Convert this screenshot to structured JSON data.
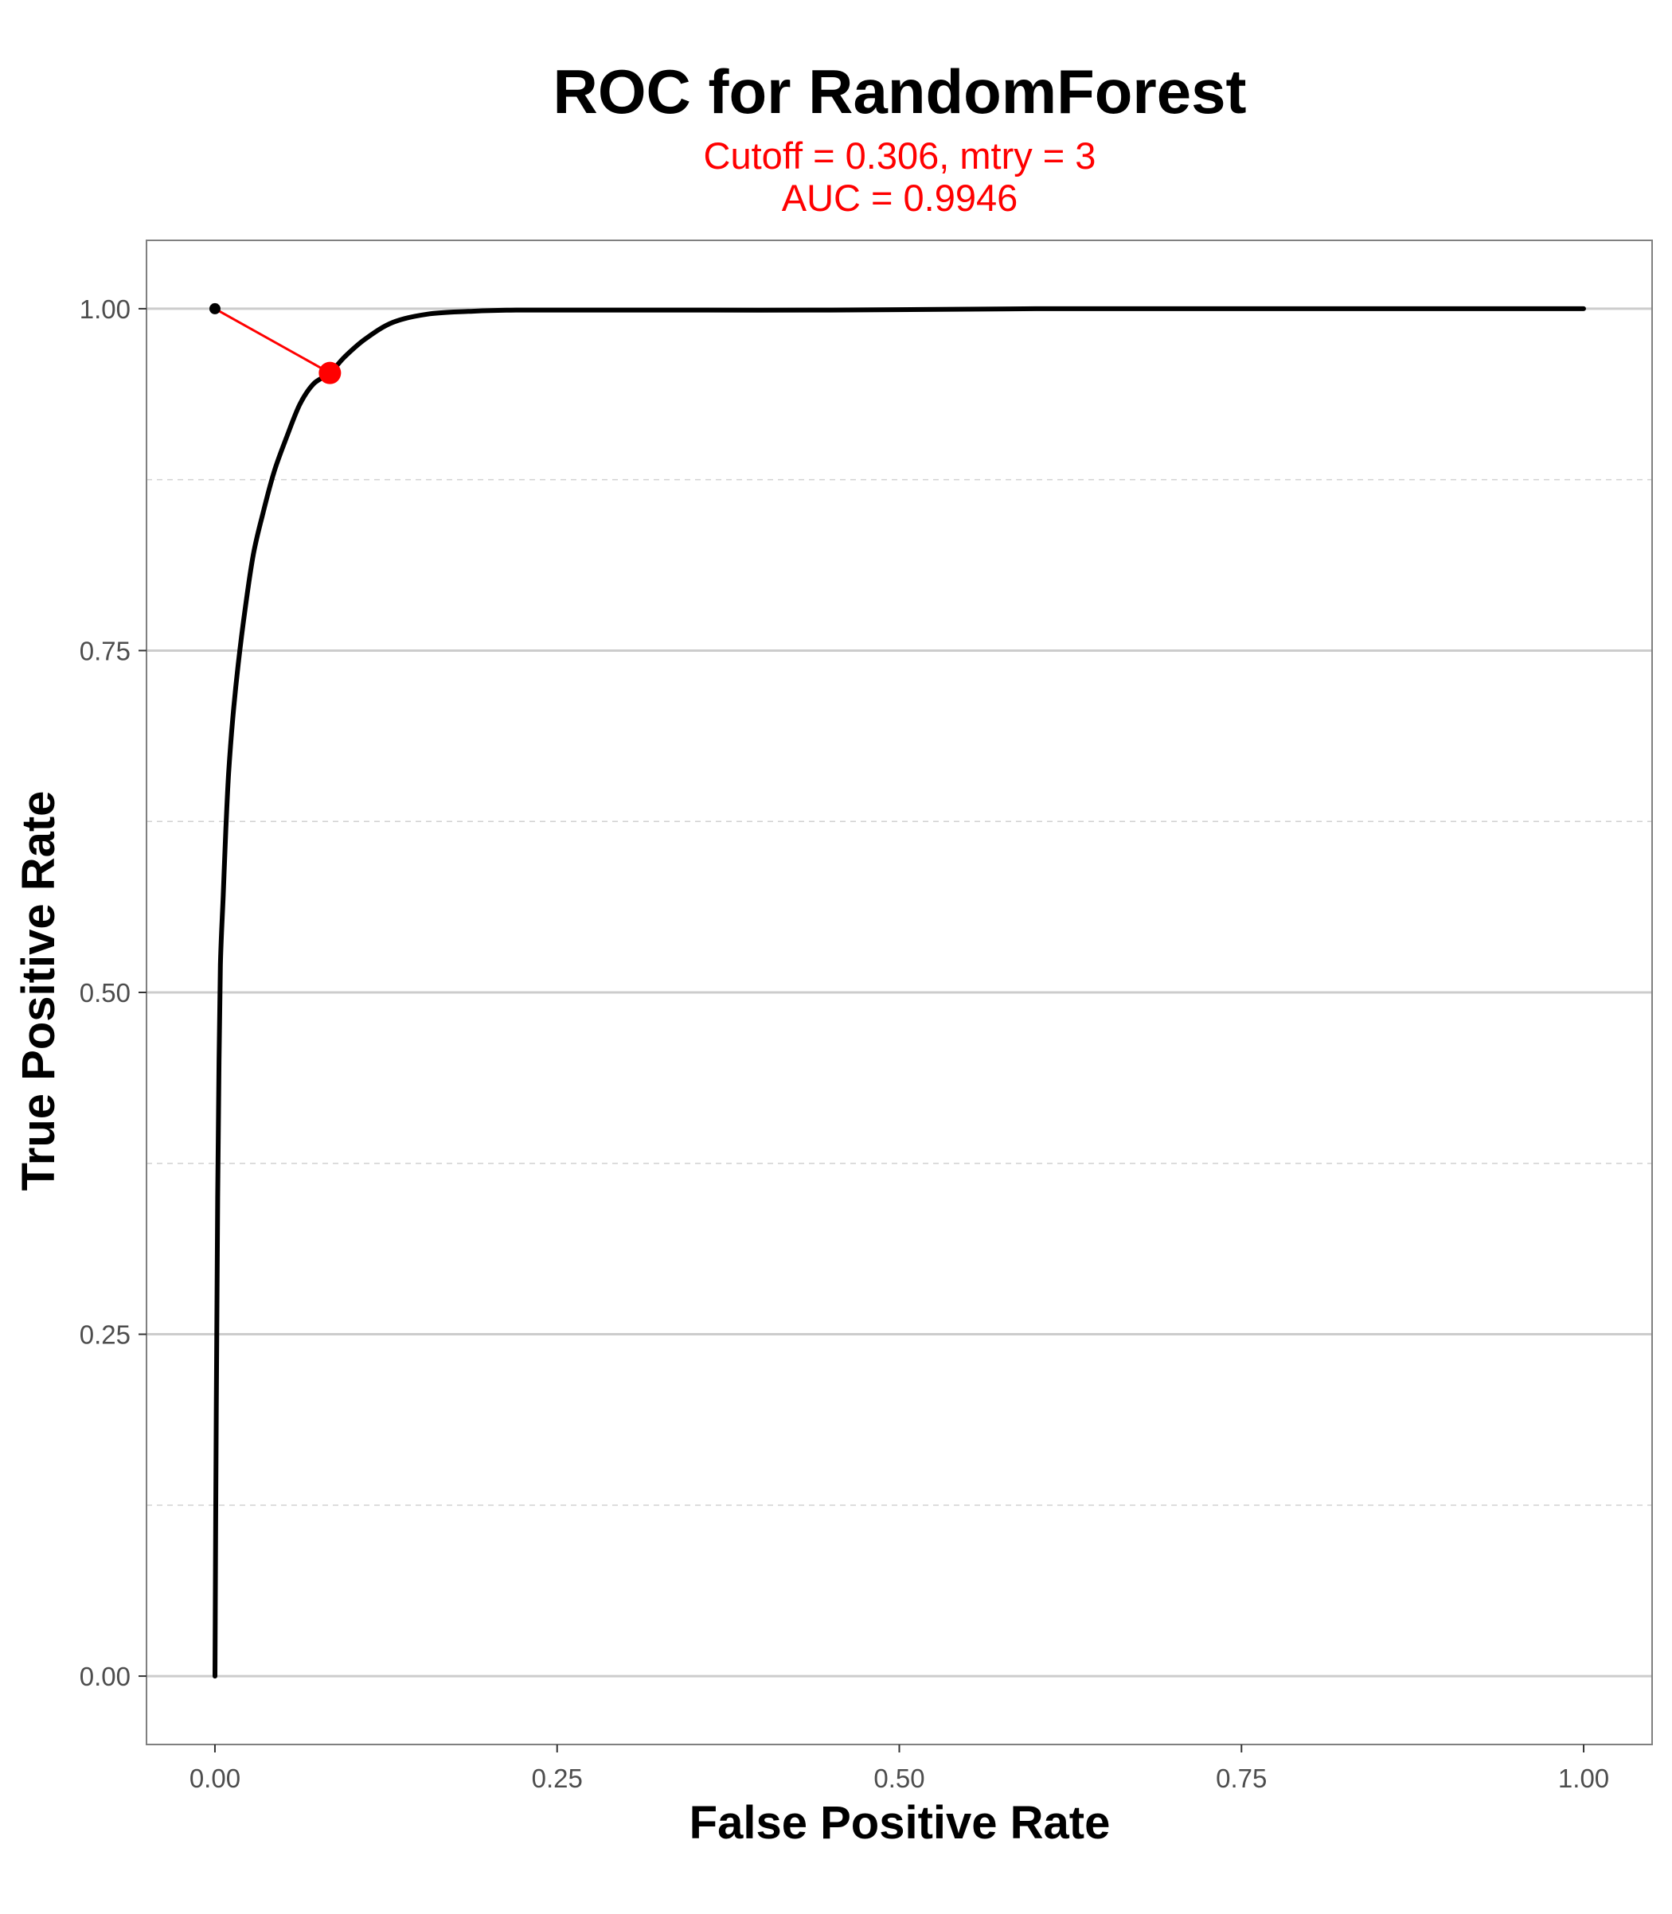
{
  "chart_data": {
    "type": "line",
    "title": "ROC for RandomForest",
    "subtitle_lines": [
      "Cutoff = 0.306, mtry = 3",
      "AUC = 0.9946"
    ],
    "xlabel": "False Positive Rate",
    "ylabel": "True Positive Rate",
    "xlim": [
      -0.05,
      1.05
    ],
    "ylim": [
      -0.05,
      1.05
    ],
    "x_ticks": [
      0,
      0.25,
      0.5,
      0.75,
      1.0
    ],
    "x_tick_labels": [
      "0.00",
      "0.25",
      "0.50",
      "0.75",
      "1.00"
    ],
    "y_ticks": [
      0,
      0.25,
      0.5,
      0.75,
      1.0
    ],
    "y_tick_labels": [
      "0.00",
      "0.25",
      "0.50",
      "0.75",
      "1.00"
    ],
    "y_minor_gridlines": [
      0.125,
      0.375,
      0.625,
      0.875
    ],
    "grid": true,
    "legend": "none",
    "series": [
      {
        "x": [
          0,
          0.001,
          0.002,
          0.003,
          0.004,
          0.006,
          0.008,
          0.01,
          0.013,
          0.017,
          0.022,
          0.028,
          0.035,
          0.043,
          0.052,
          0.062,
          0.072,
          0.084,
          0.095,
          0.11,
          0.13,
          0.155,
          0.185,
          0.22,
          0.3,
          0.45,
          0.6,
          0.8,
          1.0
        ],
        "y": [
          0,
          0.2,
          0.35,
          0.45,
          0.52,
          0.57,
          0.62,
          0.66,
          0.7,
          0.74,
          0.78,
          0.82,
          0.85,
          0.88,
          0.905,
          0.93,
          0.945,
          0.953,
          0.965,
          0.978,
          0.99,
          0.996,
          0.998,
          0.999,
          0.999,
          0.999,
          1.0,
          1.0,
          1.0
        ]
      }
    ],
    "reference_point": {
      "x": 0,
      "y": 1
    },
    "cutoff_point": {
      "x": 0.084,
      "y": 0.953
    },
    "colors": {
      "curve": "#000000",
      "cutoff": "#ff0000",
      "subtitle": "#ff0000",
      "grid": "#cccccc",
      "panel_border": "#808080"
    }
  }
}
